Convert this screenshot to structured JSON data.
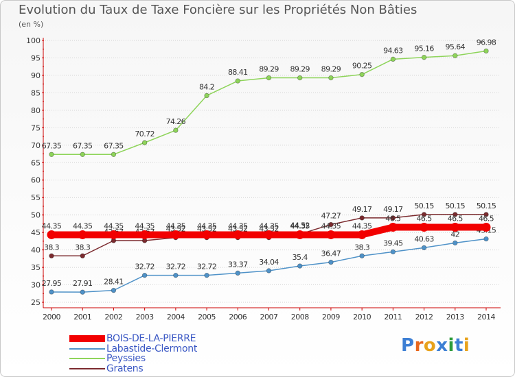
{
  "header": {
    "title": "Evolution du Taux de Taxe Foncière sur les Propriétés Non Bâties",
    "unit": "(en %)"
  },
  "logo": {
    "text": "Proxiti",
    "letter_colors": [
      "#3d7fd4",
      "#e8671c",
      "#e8a21c",
      "#3d7fd4",
      "#2d9c3a",
      "#3d7fd4",
      "#e8a21c"
    ]
  },
  "chart_data": {
    "type": "line",
    "x": [
      2000,
      2001,
      2002,
      2003,
      2004,
      2005,
      2006,
      2007,
      2008,
      2009,
      2010,
      2011,
      2012,
      2013,
      2014
    ],
    "ylim": [
      25,
      100
    ],
    "yticks": [
      25,
      30,
      35,
      40,
      45,
      50,
      55,
      60,
      65,
      70,
      75,
      80,
      85,
      90,
      95,
      100
    ],
    "grid": "horizontal dotted",
    "series": [
      {
        "name": "Gratens",
        "color": "#7b2a2e",
        "values": [
          38.3,
          38.3,
          42.67,
          42.67,
          43.52,
          43.52,
          43.52,
          43.52,
          44.52,
          47.27,
          49.17,
          49.17,
          50.15,
          50.15,
          50.15
        ],
        "labels": [
          "38.3",
          "38.3",
          "42.67",
          "42.67",
          "43.52",
          "43.52",
          "43.52",
          "43.52",
          "44.52",
          "47.27",
          "49.17",
          "49.17",
          "50.15",
          "50.15",
          "50.15"
        ]
      },
      {
        "name": "Peyssies",
        "color": "#8ed45a",
        "values": [
          67.35,
          67.35,
          67.35,
          70.72,
          74.26,
          84.2,
          88.41,
          89.29,
          89.29,
          89.29,
          90.25,
          94.63,
          95.16,
          95.64,
          96.98
        ],
        "labels": [
          "67.35",
          "67.35",
          "67.35",
          "70.72",
          "74.26",
          "84.2",
          "88.41",
          "89.29",
          "89.29",
          "89.29",
          "90.25",
          "94.63",
          "95.16",
          "95.64",
          "96.98"
        ]
      },
      {
        "name": "Labastide-Clermont",
        "color": "#4f92c8",
        "values": [
          27.95,
          27.91,
          28.41,
          32.72,
          32.72,
          32.72,
          33.37,
          34.04,
          35.4,
          36.47,
          38.3,
          39.45,
          40.63,
          42,
          43.15
        ],
        "labels": [
          "27.95",
          "27.91",
          "28.41",
          "32.72",
          "32.72",
          "32.72",
          "33.37",
          "34.04",
          "35.4",
          "36.47",
          "38.3",
          "39.45",
          "40.63",
          "42",
          "43.15"
        ]
      },
      {
        "name": "BOIS-DE-LA-PIERRE",
        "color": "#f20000",
        "values": [
          44.35,
          44.35,
          44.35,
          44.35,
          44.35,
          44.35,
          44.35,
          44.35,
          44.35,
          44.35,
          44.35,
          46.5,
          46.5,
          46.5,
          46.5
        ],
        "labels": [
          "44.35",
          "44.35",
          "44.35",
          "44.35",
          "44.35",
          "44.35",
          "44.35",
          "44.35",
          "44.35",
          "44.35",
          "44.35",
          "46.5",
          "46.5",
          "46.5",
          "46.5"
        ]
      }
    ],
    "legend": [
      "BOIS-DE-LA-PIERRE",
      "Labastide-Clermont",
      "Peyssies",
      "Gratens"
    ],
    "legend_placement": "bottom-left"
  }
}
